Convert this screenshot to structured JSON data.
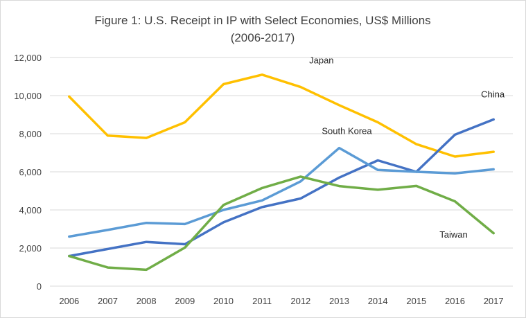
{
  "chart_data": {
    "type": "line",
    "title_line1": "Figure 1: U.S. Receipt in IP with Select Economies, US$ Millions",
    "title_line2": "(2006-2017)",
    "xlabel": "",
    "ylabel": "",
    "x": [
      "2006",
      "2007",
      "2008",
      "2009",
      "2010",
      "2011",
      "2012",
      "2013",
      "2014",
      "2015",
      "2016",
      "2017"
    ],
    "ylim": [
      0,
      12000
    ],
    "yticks": [
      0,
      2000,
      4000,
      6000,
      8000,
      10000,
      12000
    ],
    "ytick_labels": [
      "0",
      "2,000",
      "4,000",
      "6,000",
      "8,000",
      "10,000",
      "12,000"
    ],
    "grid": true,
    "legend": "none (series labeled directly on chart)",
    "series": [
      {
        "name": "Japan",
        "color": "#ffc000",
        "values": [
          9950,
          7900,
          7780,
          8600,
          10600,
          11100,
          10450,
          9500,
          8600,
          7450,
          6800,
          7050
        ]
      },
      {
        "name": "China",
        "color": "#4472c4",
        "values": [
          1580,
          1950,
          2320,
          2200,
          3350,
          4150,
          4600,
          5700,
          6600,
          6000,
          7950,
          8750
        ]
      },
      {
        "name": "South Korea",
        "color": "#5b9bd5",
        "values": [
          2600,
          2950,
          3320,
          3260,
          4000,
          4500,
          5500,
          7250,
          6100,
          6000,
          5920,
          6130
        ]
      },
      {
        "name": "Taiwan",
        "color": "#70ad47",
        "values": [
          1580,
          980,
          860,
          2020,
          4260,
          5150,
          5750,
          5250,
          5060,
          5260,
          4450,
          2780
        ]
      }
    ]
  }
}
